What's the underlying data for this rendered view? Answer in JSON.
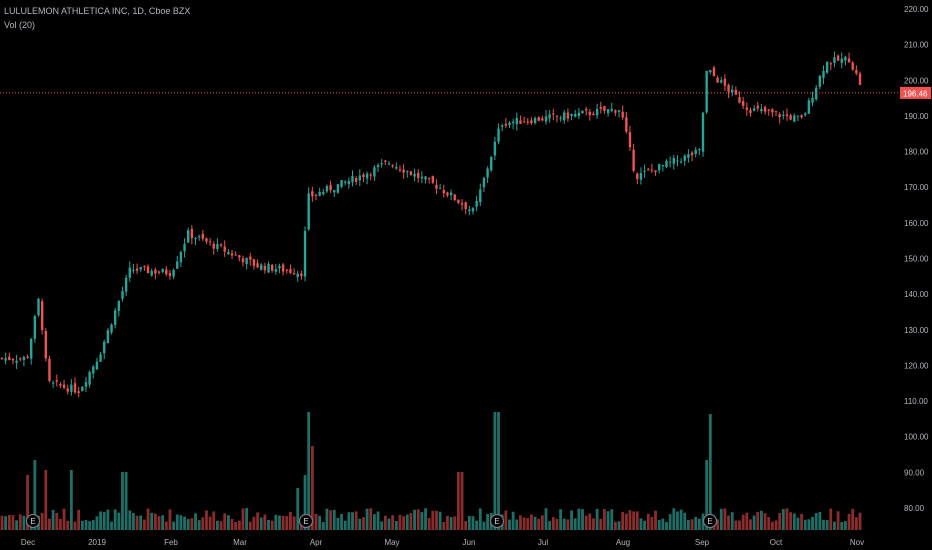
{
  "header": {
    "title": "LULULEMON ATHLETICA INC, 1D, Cboe BZX",
    "volume_label": "Vol (20)"
  },
  "price_marker": {
    "label": "196.46",
    "color": "#ef5350"
  },
  "colors": {
    "up": "#26a69a",
    "down": "#ef5350",
    "vol_up": "#1f6f67",
    "vol_down": "#8b2d2d",
    "text": "#b2b5be",
    "background": "#000000"
  },
  "earnings_label": "E",
  "chart_data": {
    "type": "candlestick",
    "y_axis_ticks": [
      "220.00",
      "210.00",
      "200.00",
      "190.00",
      "180.00",
      "170.00",
      "160.00",
      "150.00",
      "140.00",
      "130.00",
      "120.00",
      "110.00",
      "100.00",
      "90.00",
      "80.00"
    ],
    "price_range": [
      75,
      222
    ],
    "x_axis_labels": [
      "Dec",
      "2019",
      "Feb",
      "Mar",
      "Apr",
      "May",
      "Jun",
      "Jul",
      "Aug",
      "Sep",
      "Oct",
      "Nov"
    ],
    "last_price": 196.46,
    "earnings_markers_at": [
      "Dec",
      "Apr",
      "Jun",
      "Sep"
    ],
    "price_path_keypoints": [
      {
        "x": "Nov 30",
        "close": 122
      },
      {
        "x": "Dec 6",
        "close": 139
      },
      {
        "x": "Dec 10",
        "close": 115
      },
      {
        "x": "Dec 24",
        "close": 113
      },
      {
        "x": "Jan 2",
        "close": 123
      },
      {
        "x": "Jan 15",
        "close": 147
      },
      {
        "x": "Feb 1",
        "close": 146
      },
      {
        "x": "Feb 8",
        "close": 157
      },
      {
        "x": "Mar 8",
        "close": 148
      },
      {
        "x": "Mar 27",
        "close": 146
      },
      {
        "x": "Mar 28",
        "close": 167
      },
      {
        "x": "Apr 15",
        "close": 172
      },
      {
        "x": "Apr 30",
        "close": 177
      },
      {
        "x": "May 20",
        "close": 170
      },
      {
        "x": "Jun 3",
        "close": 163
      },
      {
        "x": "Jun 14",
        "close": 188
      },
      {
        "x": "Jul 10",
        "close": 190
      },
      {
        "x": "Jul 31",
        "close": 192
      },
      {
        "x": "Aug 6",
        "close": 173
      },
      {
        "x": "Aug 31",
        "close": 180
      },
      {
        "x": "Sep 3",
        "close": 203
      },
      {
        "x": "Sep 20",
        "close": 192
      },
      {
        "x": "Oct 11",
        "close": 189
      },
      {
        "x": "Oct 20",
        "close": 205
      },
      {
        "x": "Oct 29",
        "close": 206
      },
      {
        "x": "Nov 4",
        "close": 196.46
      }
    ],
    "volume_range": [
      0,
      110
    ]
  }
}
